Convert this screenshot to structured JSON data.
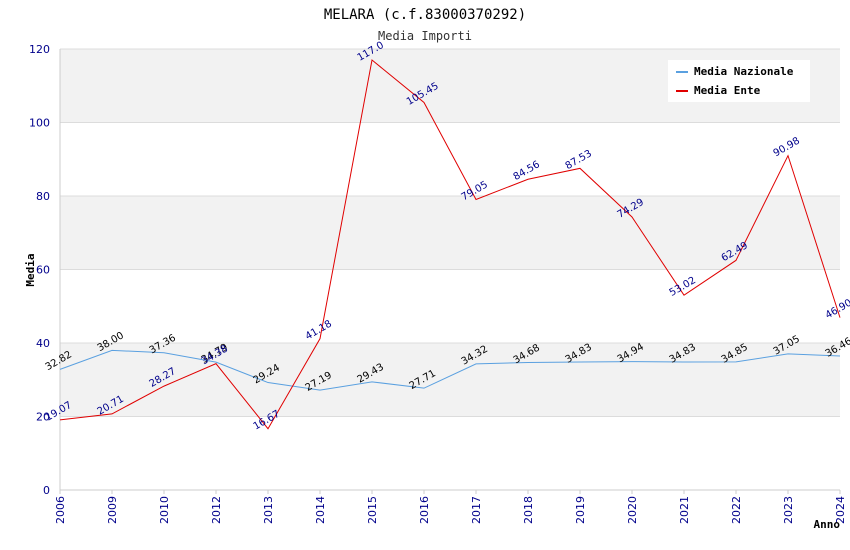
{
  "chart_data": {
    "type": "line",
    "title": "MELARA (c.f.83000370292)",
    "subtitle": "Media Importi",
    "xlabel": "Anno",
    "ylabel": "Media",
    "ylim": [
      0,
      120
    ],
    "yticks": [
      0,
      20,
      40,
      60,
      80,
      100,
      120
    ],
    "grid": true,
    "legend_position": "top-right",
    "categories": [
      "2006",
      "2009",
      "2010",
      "2012",
      "2013",
      "2014",
      "2015",
      "2016",
      "2017",
      "2018",
      "2019",
      "2020",
      "2021",
      "2022",
      "2023",
      "2024"
    ],
    "series": [
      {
        "name": "Media Nazionale",
        "color": "#5aa0e0",
        "values": [
          32.82,
          38.0,
          37.36,
          34.79,
          29.24,
          27.19,
          29.43,
          27.71,
          34.32,
          34.68,
          34.83,
          34.94,
          34.83,
          34.85,
          37.05,
          36.46
        ],
        "labels": [
          "32.82",
          "38.00",
          "37.36",
          "34.79",
          "29.24",
          "27.19",
          "29.43",
          "27.71",
          "34.32",
          "34.68",
          "34.83",
          "34.94",
          "34.83",
          "34.85",
          "37.05",
          "36.46"
        ]
      },
      {
        "name": "Media Ente",
        "color": "#e00000",
        "values": [
          19.07,
          20.71,
          28.27,
          34.38,
          16.67,
          41.18,
          117.0,
          105.45,
          79.05,
          84.56,
          87.53,
          74.29,
          53.02,
          62.49,
          90.98,
          46.9
        ],
        "labels": [
          "19.07",
          "20.71",
          "28.27",
          "34.38",
          "16.67",
          "41.18",
          "117.0",
          "105.45",
          "79.05",
          "84.56",
          "87.53",
          "74.29",
          "53.02",
          "62.49",
          "90.98",
          "46.90"
        ]
      }
    ]
  }
}
